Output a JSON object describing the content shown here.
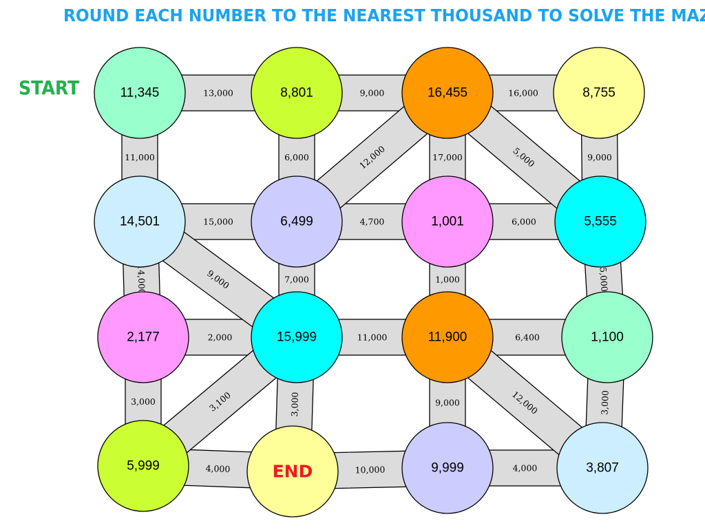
{
  "title": "ROUND EACH NUMBER TO THE NEAREST THOUSAND TO SOLVE THE MAZE!",
  "start_label": "START",
  "end_label": "END",
  "colors": {
    "title": "#1aa3f0",
    "start": "#22b14c",
    "end": "#ed1c24",
    "path": "#dcdcdc"
  },
  "nodes": [
    {
      "id": "r0c0",
      "row": 0,
      "col": 0,
      "value": "11,345",
      "color": "#99ffcc"
    },
    {
      "id": "r0c1",
      "row": 0,
      "col": 1,
      "value": "8,801",
      "color": "#ccff33"
    },
    {
      "id": "r0c2",
      "row": 0,
      "col": 2,
      "value": "16,455",
      "color": "#ff9900"
    },
    {
      "id": "r0c3",
      "row": 0,
      "col": 3,
      "value": "8,755",
      "color": "#ffff99"
    },
    {
      "id": "r1c0",
      "row": 1,
      "col": 0,
      "value": "14,501",
      "color": "#cceeff"
    },
    {
      "id": "r1c1",
      "row": 1,
      "col": 1,
      "value": "6,499",
      "color": "#ccccff"
    },
    {
      "id": "r1c2",
      "row": 1,
      "col": 2,
      "value": "1,001",
      "color": "#ff99ff"
    },
    {
      "id": "r1c3",
      "row": 1,
      "col": 3,
      "value": "5,555",
      "color": "#00ffff"
    },
    {
      "id": "r2c0",
      "row": 2,
      "col": 0,
      "value": "2,177",
      "color": "#ff99ff"
    },
    {
      "id": "r2c1",
      "row": 2,
      "col": 1,
      "value": "15,999",
      "color": "#00ffff"
    },
    {
      "id": "r2c2",
      "row": 2,
      "col": 2,
      "value": "11,900",
      "color": "#ff9900"
    },
    {
      "id": "r2c3",
      "row": 2,
      "col": 3,
      "value": "1,100",
      "color": "#99ffcc"
    },
    {
      "id": "r3c0",
      "row": 3,
      "col": 0,
      "value": "5,999",
      "color": "#ccff33"
    },
    {
      "id": "r3c1",
      "row": 3,
      "col": 1,
      "value": "",
      "color": "#ffff99",
      "is_end": true
    },
    {
      "id": "r3c2",
      "row": 3,
      "col": 2,
      "value": "9,999",
      "color": "#ccccff"
    },
    {
      "id": "r3c3",
      "row": 3,
      "col": 3,
      "value": "3,807",
      "color": "#cceeff"
    }
  ],
  "paths": [
    {
      "from": "r0c0",
      "to": "r0c1",
      "label": "13,000"
    },
    {
      "from": "r0c1",
      "to": "r0c2",
      "label": "9,000"
    },
    {
      "from": "r0c2",
      "to": "r0c3",
      "label": "16,000"
    },
    {
      "from": "r1c0",
      "to": "r1c1",
      "label": "15,000"
    },
    {
      "from": "r1c1",
      "to": "r1c2",
      "label": "4,700"
    },
    {
      "from": "r1c2",
      "to": "r1c3",
      "label": "6,000"
    },
    {
      "from": "r2c0",
      "to": "r2c1",
      "label": "2,000"
    },
    {
      "from": "r2c1",
      "to": "r2c2",
      "label": "11,000"
    },
    {
      "from": "r2c2",
      "to": "r2c3",
      "label": "6,400"
    },
    {
      "from": "r3c0",
      "to": "r3c1",
      "label": "4,000"
    },
    {
      "from": "r3c1",
      "to": "r3c2",
      "label": "10,000"
    },
    {
      "from": "r3c2",
      "to": "r3c3",
      "label": "4,000"
    },
    {
      "from": "r0c0",
      "to": "r1c0",
      "label": "11,000"
    },
    {
      "from": "r0c1",
      "to": "r1c1",
      "label": "6,000"
    },
    {
      "from": "r0c2",
      "to": "r1c2",
      "label": "17,000"
    },
    {
      "from": "r0c3",
      "to": "r1c3",
      "label": "9,000"
    },
    {
      "from": "r1c0",
      "to": "r2c0",
      "label": "14,000"
    },
    {
      "from": "r1c1",
      "to": "r2c1",
      "label": "7,000"
    },
    {
      "from": "r1c2",
      "to": "r2c2",
      "label": "1,000"
    },
    {
      "from": "r1c3",
      "to": "r2c3",
      "label": "5,000"
    },
    {
      "from": "r2c0",
      "to": "r3c0",
      "label": "3,000"
    },
    {
      "from": "r2c1",
      "to": "r3c1",
      "label": "3,000"
    },
    {
      "from": "r2c2",
      "to": "r3c2",
      "label": "9,000"
    },
    {
      "from": "r2c3",
      "to": "r3c3",
      "label": "3,000"
    },
    {
      "from": "r1c1",
      "to": "r0c2",
      "label": "12,000"
    },
    {
      "from": "r0c2",
      "to": "r1c3",
      "label": "5,000"
    },
    {
      "from": "r1c0",
      "to": "r2c1",
      "label": "9,000"
    },
    {
      "from": "r3c0",
      "to": "r2c1",
      "label": "3,100"
    },
    {
      "from": "r2c2",
      "to": "r3c3",
      "label": "12,000"
    }
  ]
}
